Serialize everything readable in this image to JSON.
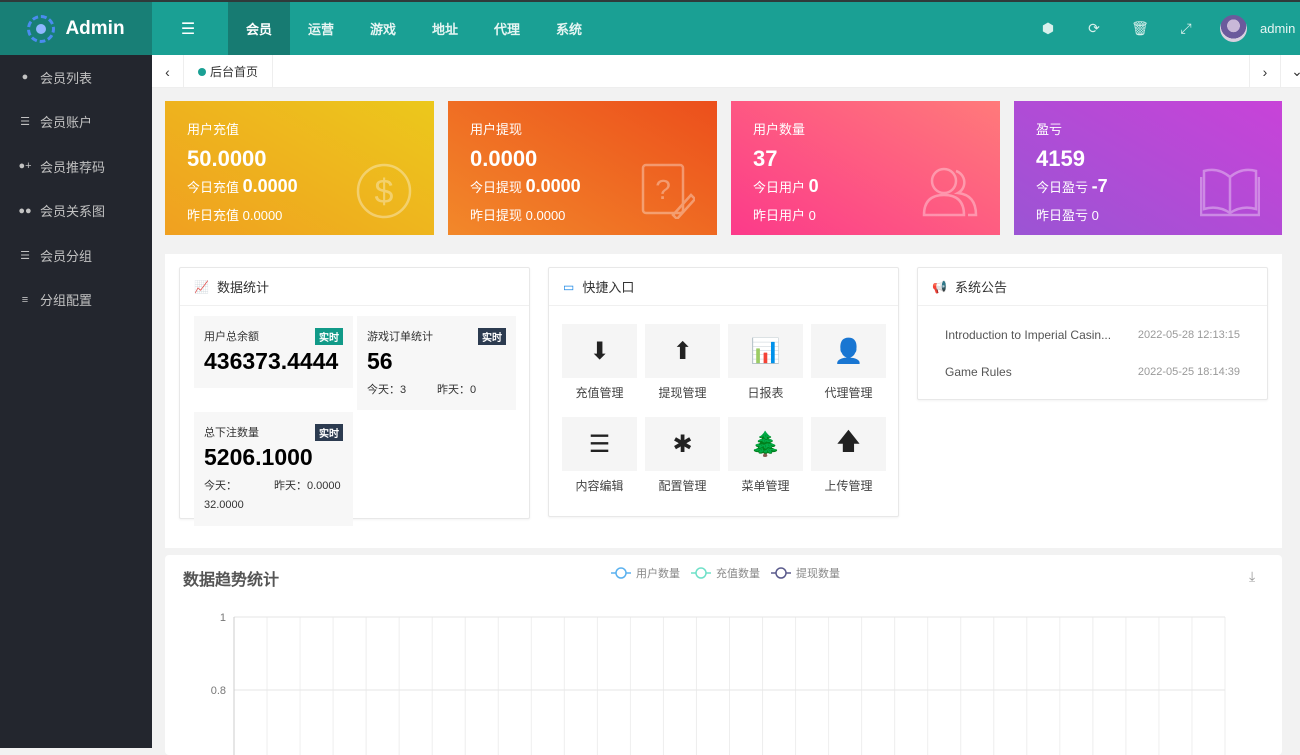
{
  "header": {
    "logo": "Admin",
    "nav": [
      "会员",
      "运营",
      "游戏",
      "地址",
      "代理",
      "系统"
    ],
    "active_nav": "会员",
    "user": "admin"
  },
  "sidebar": {
    "items": [
      {
        "label": "会员列表",
        "icon": "user-icon"
      },
      {
        "label": "会员账户",
        "icon": "list-icon"
      },
      {
        "label": "会员推荐码",
        "icon": "user-plus-icon"
      },
      {
        "label": "会员关系图",
        "icon": "users-icon"
      },
      {
        "label": "会员分组",
        "icon": "list-icon"
      },
      {
        "label": "分组配置",
        "icon": "align-icon"
      }
    ]
  },
  "tabs": {
    "home": "后台首页"
  },
  "cards": [
    {
      "title": "用户充值",
      "value": "50.0000",
      "today_label": "今日充值",
      "today": "0.0000",
      "yesterday_label": "昨日充值",
      "yesterday": "0.0000",
      "icon": "dollar-icon",
      "colors": [
        "#f0a020",
        "#ecc81c"
      ]
    },
    {
      "title": "用户提现",
      "value": "0.0000",
      "today_label": "今日提现",
      "today": "0.0000",
      "yesterday_label": "昨日提现",
      "yesterday": "0.0000",
      "icon": "question-edit-icon",
      "colors": [
        "#f2882a",
        "#ec4f1c"
      ]
    },
    {
      "title": "用户数量",
      "value": "37",
      "today_label": "今日用户",
      "today": "0",
      "yesterday_label": "昨日用户",
      "yesterday": "0",
      "icon": "users-icon",
      "colors": [
        "#fc3a8a",
        "#ff7a7a"
      ]
    },
    {
      "title": "盈亏",
      "value": "4159",
      "today_label": "今日盈亏",
      "today": "-7",
      "yesterday_label": "昨日盈亏",
      "yesterday": "0",
      "icon": "book-icon",
      "colors": [
        "#9b54d4",
        "#c843d8"
      ]
    }
  ],
  "stats": {
    "title": "数据统计",
    "badge": "实时",
    "balance": {
      "label": "用户总余额",
      "value": "436373.4444"
    },
    "orders": {
      "label": "游戏订单统计",
      "value": "56",
      "today": "今天：3",
      "yesterday": "昨天：0"
    },
    "bets": {
      "label": "总下注数量",
      "value": "5206.1000",
      "today": "今天：",
      "yesterday": "昨天：0.0000",
      "extra": "32.0000"
    }
  },
  "quick": {
    "title": "快捷入口",
    "items": [
      {
        "label": "充值管理",
        "glyph": "⬇"
      },
      {
        "label": "提现管理",
        "glyph": "⬆"
      },
      {
        "label": "日报表",
        "glyph": "📊"
      },
      {
        "label": "代理管理",
        "glyph": "👤"
      },
      {
        "label": "内容编辑",
        "glyph": "☰"
      },
      {
        "label": "配置管理",
        "glyph": "✱"
      },
      {
        "label": "菜单管理",
        "glyph": "🌲"
      },
      {
        "label": "上传管理",
        "glyph": "🡅"
      }
    ]
  },
  "notice": {
    "title": "系统公告",
    "items": [
      {
        "title": "Introduction to Imperial Casin...",
        "date": "2022-05-28 12:13:15"
      },
      {
        "title": "Game Rules",
        "date": "2022-05-25 18:14:39"
      }
    ]
  },
  "chart_data": {
    "type": "line",
    "title": "数据趋势统计",
    "series": [
      {
        "name": "用户数量",
        "color": "#5ab1ef",
        "values": []
      },
      {
        "name": "充值数量",
        "color": "#6fe0c8",
        "values": []
      },
      {
        "name": "提现数量",
        "color": "#5a5a8c",
        "values": []
      }
    ],
    "yticks": [
      "1",
      "0.8"
    ],
    "grid": true,
    "legend": "top-center"
  }
}
